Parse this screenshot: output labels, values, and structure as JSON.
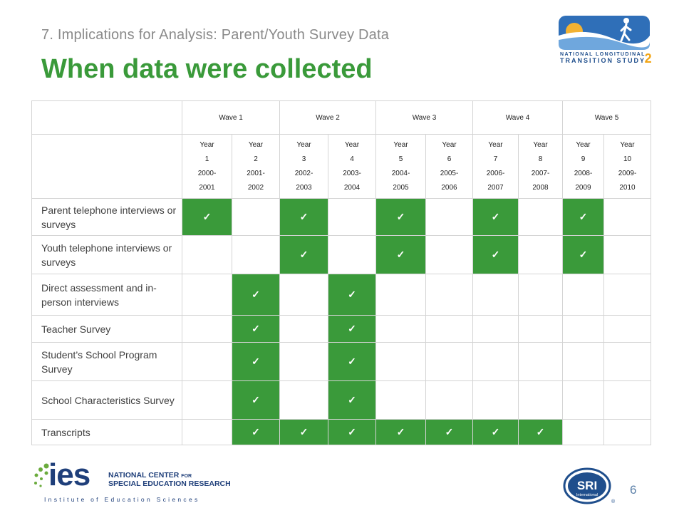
{
  "slide": {
    "subtitle": "7. Implications for Analysis: Parent/Youth Survey Data",
    "title": "When data were collected",
    "page_number": "6"
  },
  "logos": {
    "nlts_line1": "NATIONAL LONGITUDINAL",
    "nlts_line2": "TRANSITION STUDY",
    "nlts_two": "2",
    "ies_mark": "ies",
    "ies_line1": "NATIONAL CENTER",
    "ies_line1_small": "FOR",
    "ies_line2": "SPECIAL EDUCATION RESEARCH",
    "ies_institute": "Institute of Education Sciences",
    "sri": "SRI",
    "sri_sub": "International",
    "sri_reg": "®"
  },
  "table": {
    "waves": [
      "Wave 1",
      "Wave 2",
      "Wave 3",
      "Wave 4",
      "Wave 5"
    ],
    "years": [
      {
        "label": "Year",
        "num": "1",
        "start": "2000-",
        "end": "2001"
      },
      {
        "label": "Year",
        "num": "2",
        "start": "2001-",
        "end": "2002"
      },
      {
        "label": "Year",
        "num": "3",
        "start": "2002-",
        "end": "2003"
      },
      {
        "label": "Year",
        "num": "4",
        "start": "2003-",
        "end": "2004"
      },
      {
        "label": "Year",
        "num": "5",
        "start": "2004-",
        "end": "2005"
      },
      {
        "label": "Year",
        "num": "6",
        "start": "2005-",
        "end": "2006"
      },
      {
        "label": "Year",
        "num": "7",
        "start": "2006-",
        "end": "2007"
      },
      {
        "label": "Year",
        "num": "8",
        "start": "2007-",
        "end": "2008"
      },
      {
        "label": "Year",
        "num": "9",
        "start": "2008-",
        "end": "2009"
      },
      {
        "label": "Year",
        "num": "10",
        "start": "2009-",
        "end": "2010"
      }
    ],
    "check_mark": "✓",
    "rows": [
      {
        "label": "Parent telephone interviews or surveys",
        "checks": [
          1,
          0,
          1,
          0,
          1,
          0,
          1,
          0,
          1,
          0
        ]
      },
      {
        "label": "Youth telephone interviews or surveys",
        "checks": [
          0,
          0,
          1,
          0,
          1,
          0,
          1,
          0,
          1,
          0
        ]
      },
      {
        "label": "Direct assessment and in-person interviews",
        "checks": [
          0,
          1,
          0,
          1,
          0,
          0,
          0,
          0,
          0,
          0
        ]
      },
      {
        "label": "Teacher Survey",
        "checks": [
          0,
          1,
          0,
          1,
          0,
          0,
          0,
          0,
          0,
          0
        ]
      },
      {
        "label": "Student’s School Program Survey",
        "checks": [
          0,
          1,
          0,
          1,
          0,
          0,
          0,
          0,
          0,
          0
        ]
      },
      {
        "label": "School Characteristics Survey",
        "checks": [
          0,
          1,
          0,
          1,
          0,
          0,
          0,
          0,
          0,
          0
        ]
      },
      {
        "label": "Transcripts",
        "checks": [
          0,
          1,
          1,
          1,
          1,
          1,
          1,
          1,
          0,
          0
        ]
      }
    ]
  }
}
